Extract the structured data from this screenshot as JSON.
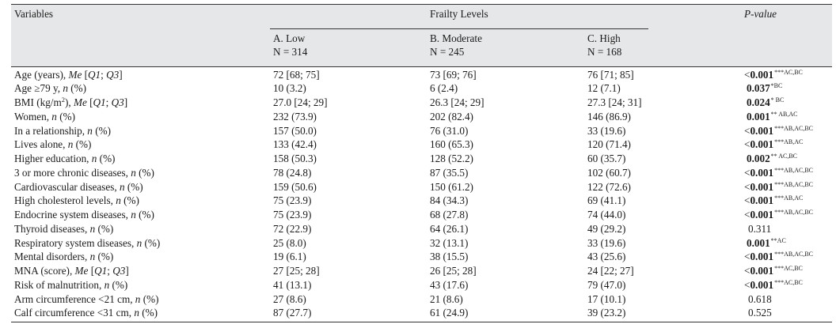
{
  "header": {
    "variables": "Variables",
    "frailty_levels": "Frailty Levels",
    "p_value": "P-value",
    "groups": [
      {
        "name": "A. Low",
        "n": "N = 314"
      },
      {
        "name": "B. Moderate",
        "n": "N = 245"
      },
      {
        "name": "C. High",
        "n": "N = 168"
      }
    ]
  },
  "rows": [
    {
      "label": "Age (years), Me [Q1; Q3]",
      "a": "72 [68; 75]",
      "b": "73 [69; 76]",
      "c": "76 [71; 85]",
      "p_prefix": "<",
      "p": "0.001",
      "sup": "***AC,BC"
    },
    {
      "label": "Age ≥79 y, n (%)",
      "a": "10 (3.2)",
      "b": "6 (2.4)",
      "c": "12 (7.1)",
      "p_prefix": "",
      "p": "0.037",
      "sup": "*BC"
    },
    {
      "label": "BMI (kg/m2), Me [Q1; Q3]",
      "a": "27.0 [24; 29]",
      "b": "26.3 [24; 29]",
      "c": "27.3 [24; 31]",
      "p_prefix": "",
      "p": "0.024",
      "sup": "* BC"
    },
    {
      "label": "Women, n (%)",
      "a": "232 (73.9)",
      "b": "202 (82.4)",
      "c": "146 (86.9)",
      "p_prefix": "",
      "p": "0.001",
      "sup": "** AB,AC"
    },
    {
      "label": "In a relationship, n (%)",
      "a": "157 (50.0)",
      "b": "76 (31.0)",
      "c": "33 (19.6)",
      "p_prefix": "<",
      "p": "0.001",
      "sup": "***AB,AC,BC"
    },
    {
      "label": "Lives alone, n (%)",
      "a": "133 (42.4)",
      "b": "160 (65.3)",
      "c": "120 (71.4)",
      "p_prefix": "<",
      "p": "0.001",
      "sup": "***AB,AC"
    },
    {
      "label": "Higher education, n (%)",
      "a": "158 (50.3)",
      "b": "128 (52.2)",
      "c": "60 (35.7)",
      "p_prefix": "",
      "p": "0.002",
      "sup": "** AC,BC"
    },
    {
      "label": "3 or more chronic diseases, n (%)",
      "a": "78 (24.8)",
      "b": "87 (35.5)",
      "c": "102 (60.7)",
      "p_prefix": "<",
      "p": "0.001",
      "sup": "***AB,AC,BC"
    },
    {
      "label": "Cardiovascular diseases, n (%)",
      "a": "159 (50.6)",
      "b": "150 (61.2)",
      "c": "122 (72.6)",
      "p_prefix": "<",
      "p": "0.001",
      "sup": "***AB,AC,BC"
    },
    {
      "label": "High cholesterol levels, n (%)",
      "a": "75 (23.9)",
      "b": "84 (34.3)",
      "c": "69 (41.1)",
      "p_prefix": "<",
      "p": "0.001",
      "sup": "***AB,AC"
    },
    {
      "label": "Endocrine system diseases, n (%)",
      "a": "75 (23.9)",
      "b": "68 (27.8)",
      "c": "74 (44.0)",
      "p_prefix": "<",
      "p": "0.001",
      "sup": "***AB,AC,BC"
    },
    {
      "label": "Thyroid diseases, n (%)",
      "a": "72 (22.9)",
      "b": "64 (26.1)",
      "c": "49 (29.2)",
      "p_prefix": "",
      "p": "0.311",
      "sup": "",
      "plain": true
    },
    {
      "label": "Respiratory system diseases, n (%)",
      "a": "25 (8.0)",
      "b": "32 (13.1)",
      "c": "33 (19.6)",
      "p_prefix": "",
      "p": "0.001",
      "sup": "**AC"
    },
    {
      "label": "Mental disorders, n (%)",
      "a": "19 (6.1)",
      "b": "38 (15.5)",
      "c": "43 (25.6)",
      "p_prefix": "<",
      "p": "0.001",
      "sup": "***AB,AC,BC"
    },
    {
      "label": "MNA (score), Me [Q1; Q3]",
      "a": "27 [25; 28]",
      "b": "26 [25; 28]",
      "c": "24 [22; 27]",
      "p_prefix": "<",
      "p": "0.001",
      "sup": "***AC,BC"
    },
    {
      "label": "Risk of malnutrition, n (%)",
      "a": "41 (13.1)",
      "b": "43 (17.6)",
      "c": "79 (47.0)",
      "p_prefix": "<",
      "p": "0.001",
      "sup": "***AC,BC"
    },
    {
      "label": "Arm circumference <21 cm, n (%)",
      "a": "27 (8.6)",
      "b": "21 (8.6)",
      "c": "17 (10.1)",
      "p_prefix": "",
      "p": "0.618",
      "sup": "",
      "plain": true
    },
    {
      "label": "Calf circumference <31 cm, n (%)",
      "a": "87 (27.7)",
      "b": "61 (24.9)",
      "c": "39 (23.2)",
      "p_prefix": "",
      "p": "0.525",
      "sup": "",
      "plain": true
    }
  ]
}
